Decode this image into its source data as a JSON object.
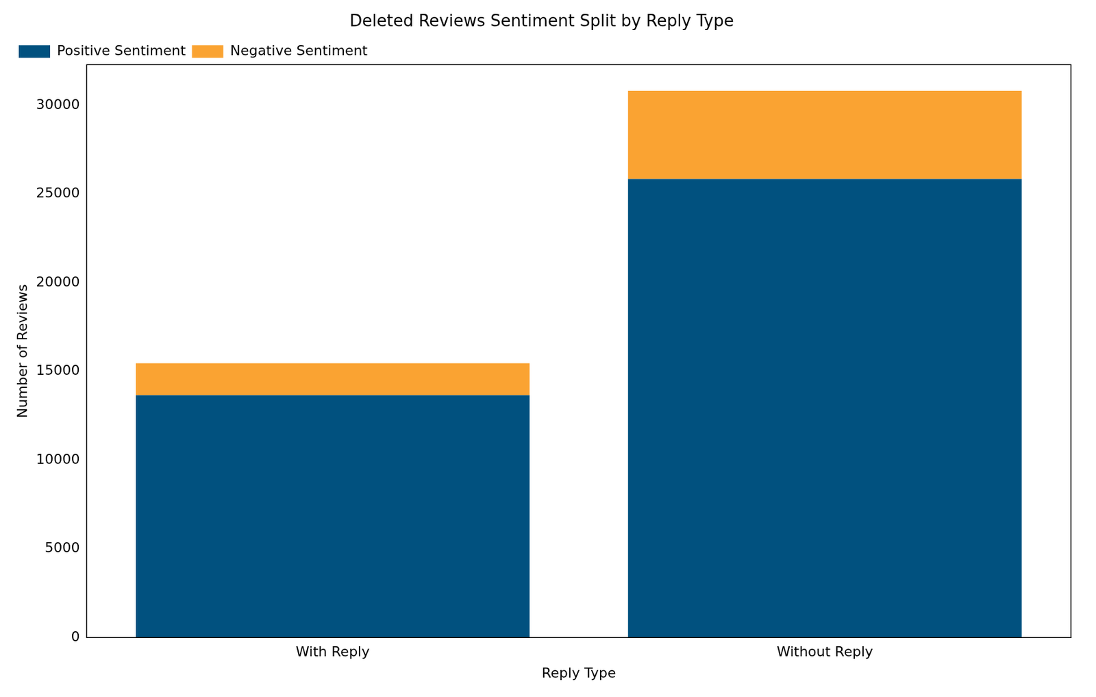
{
  "chart_data": {
    "type": "bar",
    "title": "Deleted Reviews Sentiment Split by Reply Type",
    "x_label": "Reply Type",
    "y_label": "Number of Reviews",
    "categories": [
      "With Reply",
      "Without Reply"
    ],
    "series": [
      {
        "name": "Positive Sentiment",
        "color": "#01517f",
        "values": [
          13670,
          25860
        ]
      },
      {
        "name": "Negative Sentiment",
        "color": "#faa332",
        "values": [
          1800,
          4960
        ]
      }
    ],
    "stacked": true,
    "ylim": [
      0,
      32300
    ],
    "yticks": [
      0,
      5000,
      10000,
      15000,
      20000,
      25000,
      30000
    ],
    "grid": false,
    "legend": "upper left"
  }
}
